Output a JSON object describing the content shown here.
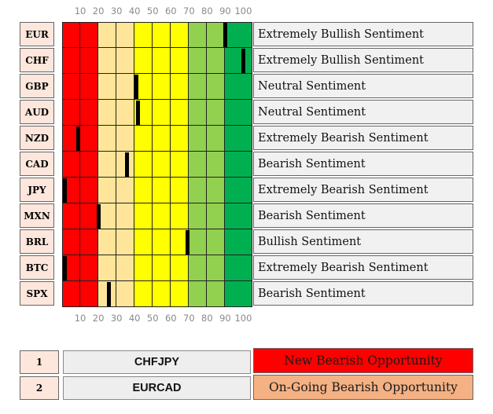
{
  "chart_data": {
    "type": "bar",
    "scale_ticks": [
      "10",
      "20",
      "30",
      "40",
      "50",
      "60",
      "70",
      "80",
      "90",
      "100"
    ],
    "xlim": [
      0,
      105
    ],
    "zone_colors": [
      {
        "from": 0,
        "to": 20,
        "color": "#ff0000"
      },
      {
        "from": 20,
        "to": 40,
        "color": "#ffe599"
      },
      {
        "from": 40,
        "to": 70,
        "color": "#ffff00"
      },
      {
        "from": 70,
        "to": 90,
        "color": "#92d050"
      },
      {
        "from": 90,
        "to": 105,
        "color": "#00b050"
      }
    ],
    "rows": [
      {
        "currency": "EUR",
        "value": 90,
        "sentiment": "Extremely Bullish Sentiment"
      },
      {
        "currency": "CHF",
        "value": 100,
        "sentiment": "Extremely Bullish Sentiment"
      },
      {
        "currency": "GBP",
        "value": 41,
        "sentiment": "Neutral Sentiment"
      },
      {
        "currency": "AUD",
        "value": 42,
        "sentiment": "Neutral Sentiment"
      },
      {
        "currency": "NZD",
        "value": 9,
        "sentiment": "Extremely Bearish Sentiment"
      },
      {
        "currency": "CAD",
        "value": 36,
        "sentiment": "Bearish Sentiment"
      },
      {
        "currency": "JPY",
        "value": 1,
        "sentiment": "Extremely Bearish Sentiment"
      },
      {
        "currency": "MXN",
        "value": 20,
        "sentiment": "Bearish Sentiment"
      },
      {
        "currency": "BRL",
        "value": 69,
        "sentiment": "Bullish Sentiment"
      },
      {
        "currency": "BTC",
        "value": 1,
        "sentiment": "Extremely Bearish Sentiment"
      },
      {
        "currency": "SPX",
        "value": 26,
        "sentiment": "Bearish Sentiment"
      }
    ]
  },
  "legend": [
    {
      "num": "1",
      "pair": "CHFJPY",
      "tag": "New Bearish Opportunity",
      "tag_bg": "#ff0000",
      "tag_color": "#1a1a1a"
    },
    {
      "num": "2",
      "pair": "EURCAD",
      "tag": "On-Going Bearish Opportunity",
      "tag_bg": "#f4b183",
      "tag_color": "#1a1a1a"
    }
  ]
}
